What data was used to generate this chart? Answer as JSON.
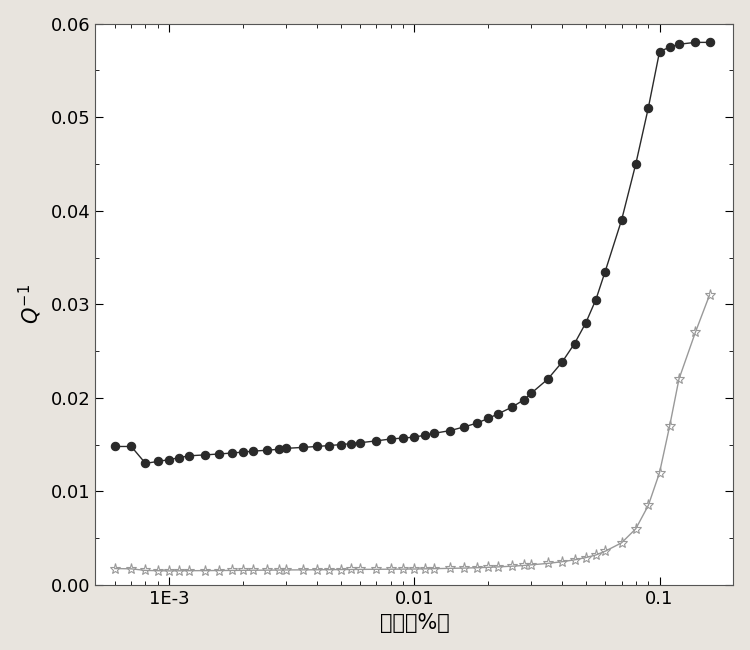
{
  "title": "",
  "xlabel": "应变（%）",
  "ylabel": "$Q^{-1}$",
  "xlim": [
    0.0005,
    0.2
  ],
  "ylim": [
    0.0,
    0.06
  ],
  "fig_facecolor": "#e8e4de",
  "ax_facecolor": "#ffffff",
  "series1_color": "#2a2a2a",
  "series2_color": "#999999",
  "series1_markersize": 6,
  "series2_markersize": 8,
  "series1_markerfacecolor": "#2a2a2a",
  "series2_markerfacecolor": "none",
  "linewidth": 1.0,
  "series1_x": [
    0.0006,
    0.0007,
    0.0008,
    0.0009,
    0.001,
    0.0011,
    0.0012,
    0.0014,
    0.0016,
    0.0018,
    0.002,
    0.0022,
    0.0025,
    0.0028,
    0.003,
    0.0035,
    0.004,
    0.0045,
    0.005,
    0.0055,
    0.006,
    0.007,
    0.008,
    0.009,
    0.01,
    0.011,
    0.012,
    0.014,
    0.016,
    0.018,
    0.02,
    0.022,
    0.025,
    0.028,
    0.03,
    0.035,
    0.04,
    0.045,
    0.05,
    0.055,
    0.06,
    0.07,
    0.08,
    0.09,
    0.1,
    0.11,
    0.12,
    0.14,
    0.16
  ],
  "series1_y": [
    0.0148,
    0.0148,
    0.013,
    0.0132,
    0.0134,
    0.0136,
    0.0138,
    0.0139,
    0.014,
    0.0141,
    0.0142,
    0.0143,
    0.0144,
    0.0145,
    0.0146,
    0.0147,
    0.0148,
    0.0149,
    0.015,
    0.0151,
    0.0152,
    0.0154,
    0.0156,
    0.0157,
    0.0158,
    0.016,
    0.0162,
    0.0165,
    0.0169,
    0.0173,
    0.0178,
    0.0183,
    0.019,
    0.0198,
    0.0205,
    0.022,
    0.0238,
    0.0258,
    0.028,
    0.0305,
    0.0335,
    0.039,
    0.045,
    0.051,
    0.057,
    0.0575,
    0.0578,
    0.058,
    0.058
  ],
  "series2_x": [
    0.0006,
    0.0007,
    0.0008,
    0.0009,
    0.001,
    0.0011,
    0.0012,
    0.0014,
    0.0016,
    0.0018,
    0.002,
    0.0022,
    0.0025,
    0.0028,
    0.003,
    0.0035,
    0.004,
    0.0045,
    0.005,
    0.0055,
    0.006,
    0.007,
    0.008,
    0.009,
    0.01,
    0.011,
    0.012,
    0.014,
    0.016,
    0.018,
    0.02,
    0.022,
    0.025,
    0.028,
    0.03,
    0.035,
    0.04,
    0.045,
    0.05,
    0.055,
    0.06,
    0.07,
    0.08,
    0.09,
    0.1,
    0.11,
    0.12,
    0.14,
    0.16
  ],
  "series2_y": [
    0.00175,
    0.00172,
    0.00155,
    0.00152,
    0.0015,
    0.00151,
    0.00152,
    0.00153,
    0.00154,
    0.00155,
    0.00156,
    0.00157,
    0.00158,
    0.00159,
    0.0016,
    0.00161,
    0.00162,
    0.00163,
    0.00164,
    0.00165,
    0.00166,
    0.00167,
    0.00168,
    0.00169,
    0.0017,
    0.00172,
    0.00174,
    0.00177,
    0.0018,
    0.00184,
    0.00188,
    0.00193,
    0.002,
    0.00208,
    0.00215,
    0.0023,
    0.00248,
    0.00268,
    0.00292,
    0.0032,
    0.0036,
    0.0045,
    0.006,
    0.0085,
    0.012,
    0.017,
    0.022,
    0.027,
    0.031
  ],
  "xticks": [
    0.001,
    0.01,
    0.1
  ],
  "xtick_labels": [
    "1E-3",
    "0.01",
    "0.1"
  ],
  "yticks": [
    0.0,
    0.01,
    0.02,
    0.03,
    0.04,
    0.05,
    0.06
  ],
  "ytick_labels": [
    "0.00",
    "0.01",
    "0.02",
    "0.03",
    "0.04",
    "0.05",
    "0.06"
  ],
  "tick_fontsize": 13,
  "label_fontsize": 15
}
